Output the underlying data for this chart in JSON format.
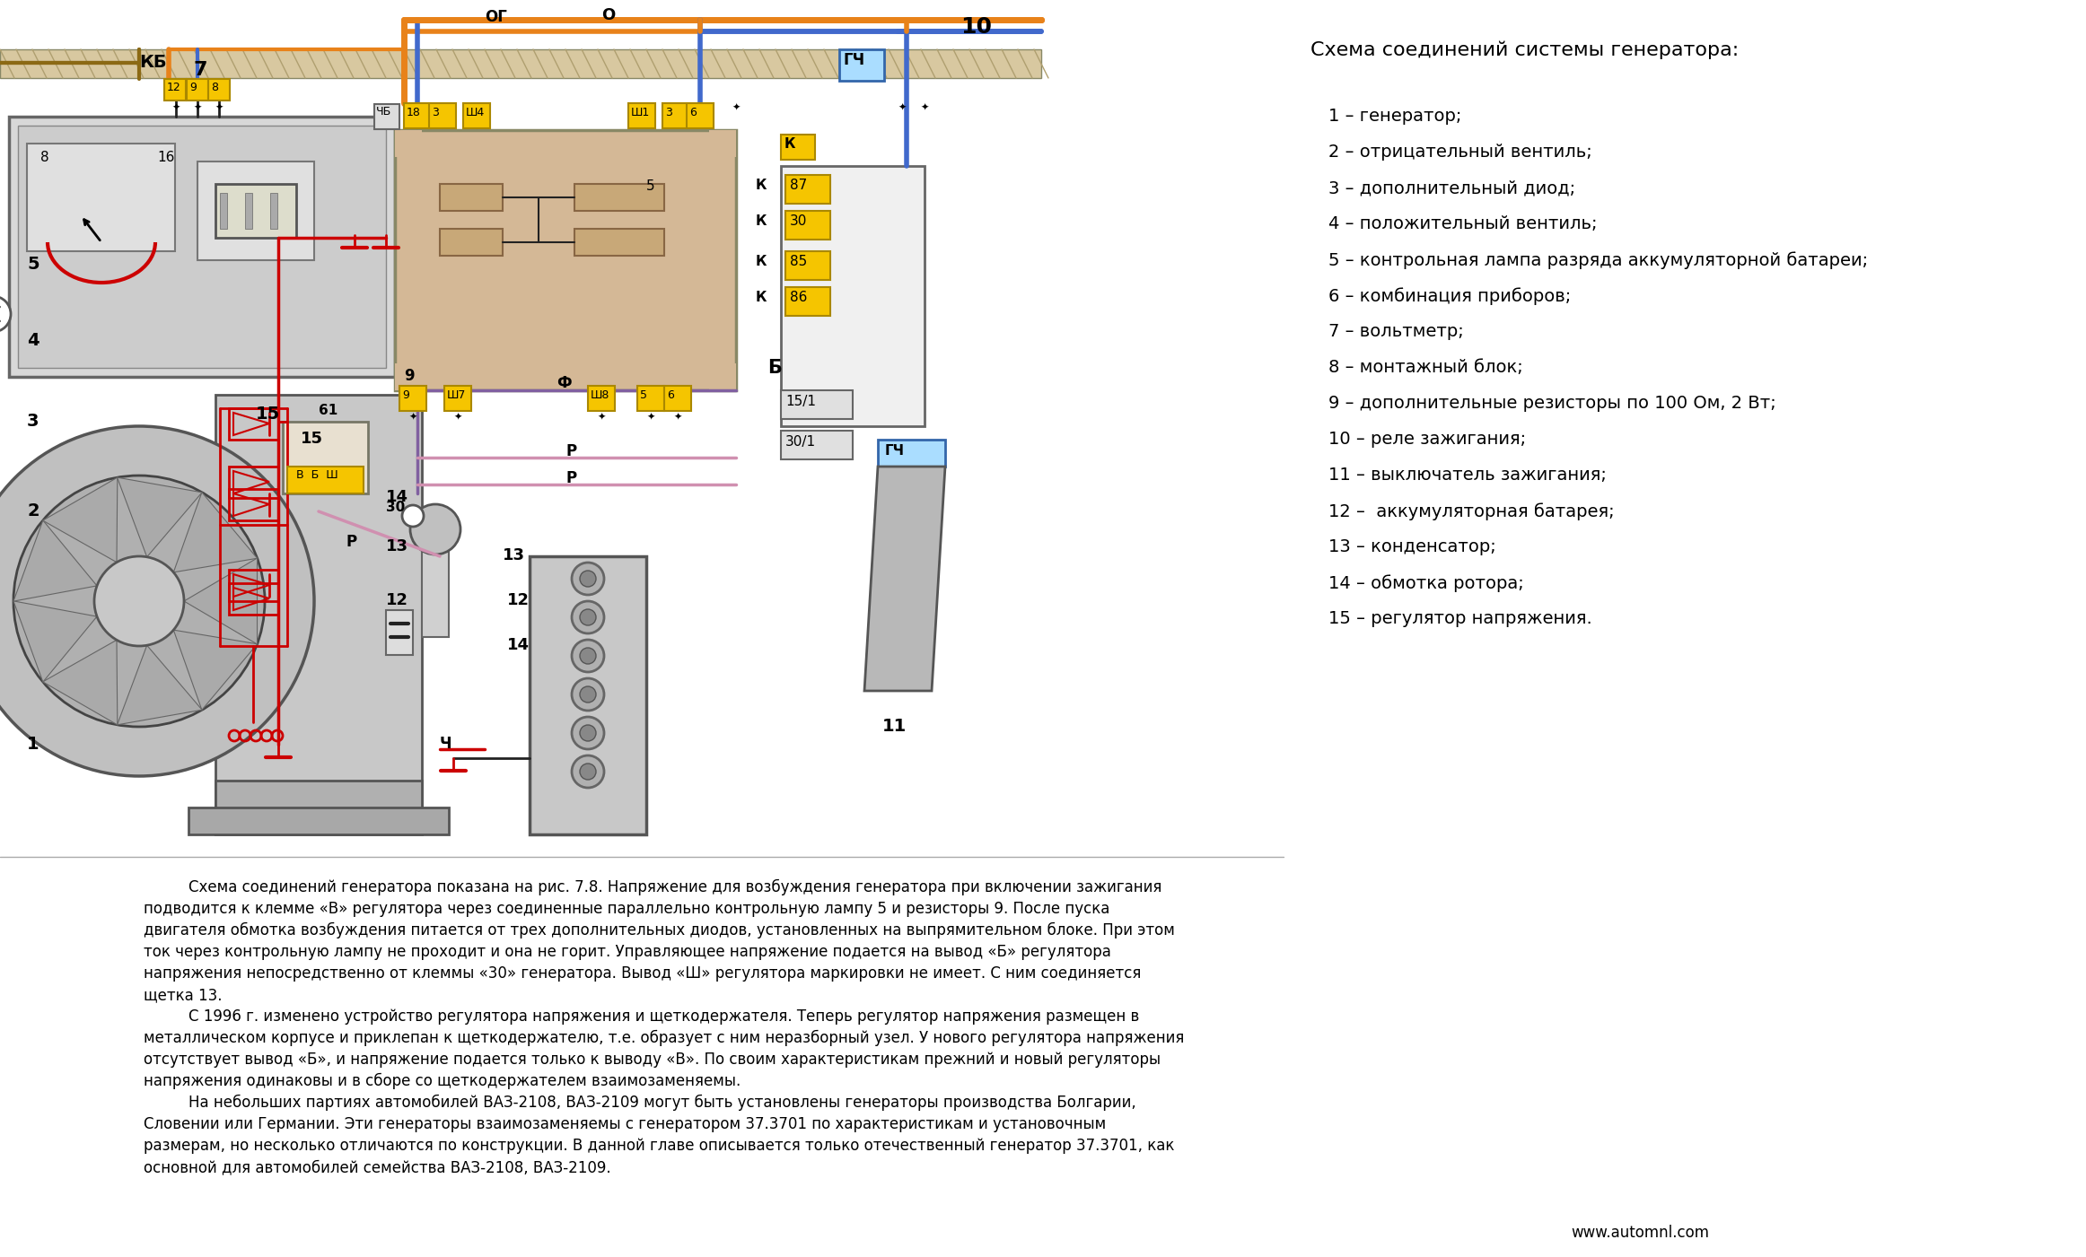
{
  "bg_color": "#ffffff",
  "title_text": "Схема соединений системы генератора:",
  "legend_items": [
    "1 – генератор;",
    "2 – отрицательный вентиль;",
    "3 – дополнительный диод;",
    "4 – положительный вентиль;",
    "5 – контрольная лампа разряда аккумуляторной батареи;",
    "6 – комбинация приборов;",
    "7 – вольтметр;",
    "8 – монтажный блок;",
    "9 – дополнительные резисторы по 100 Ом, 2 Вт;",
    "10 – реле зажигания;",
    "11 – выключатель зажигания;",
    "12 –  аккумуляторная батарея;",
    "13 – конденсатор;",
    "14 – обмотка ротора;",
    "15 – регулятор напряжения."
  ],
  "website": "www.automnl.com",
  "line_color_orange": "#e8821a",
  "line_color_blue": "#4169cc",
  "line_color_red": "#cc0000",
  "line_color_black": "#222222",
  "line_color_pink": "#d090b0",
  "line_color_purple": "#8060a0",
  "line_color_gray": "#888888",
  "line_color_brown": "#8B6914",
  "label_color_yellow": "#f5c500",
  "label_color_green": "#228B22",
  "component_bg": "#d4c0a0",
  "relay_bg": "#c8b090",
  "inst_bg": "#d8d8d8",
  "gen_bg": "#c0c0c0"
}
